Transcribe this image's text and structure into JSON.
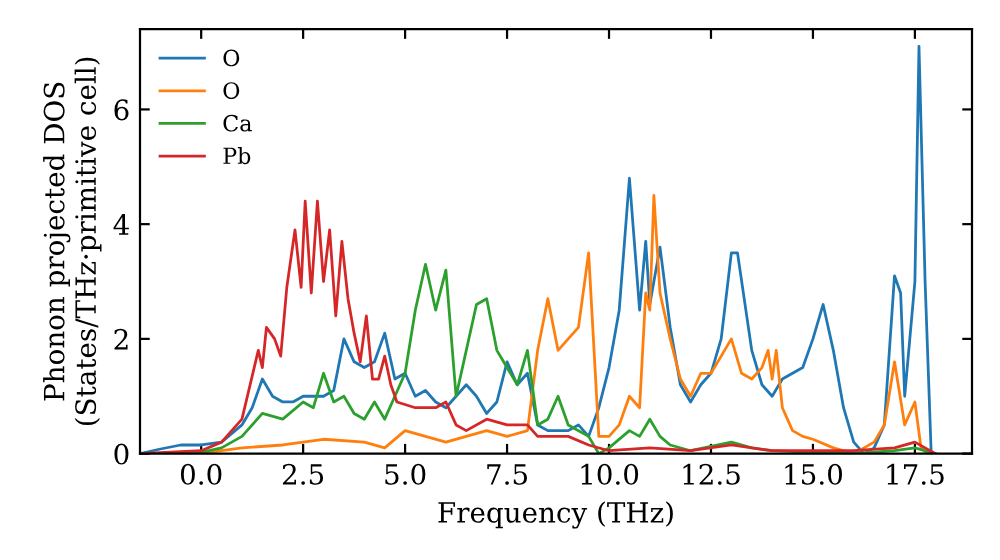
{
  "chart_data": {
    "type": "line",
    "xlabel": "Frequency (THz)",
    "ylabel": "Phonon projected DOS\n(States/THz·primitive cell)",
    "xlim": [
      -1.5,
      18.9
    ],
    "ylim": [
      0,
      7.4
    ],
    "xticks": [
      {
        "value": 0,
        "label": "0.0"
      },
      {
        "value": 2.5,
        "label": "2.5"
      },
      {
        "value": 5,
        "label": "5.0"
      },
      {
        "value": 7.5,
        "label": "7.5"
      },
      {
        "value": 10,
        "label": "10.0"
      },
      {
        "value": 12.5,
        "label": "12.5"
      },
      {
        "value": 15,
        "label": "15.0"
      },
      {
        "value": 17.5,
        "label": "17.5"
      }
    ],
    "yticks": [
      0,
      2,
      4,
      6
    ],
    "legend": "top left",
    "grid": false,
    "marker": "none",
    "line_style": "solid",
    "series": [
      {
        "name": "O",
        "color": "#1f77b4",
        "x": [
          -1.5,
          -1,
          -0.5,
          0,
          0.5,
          1,
          1.25,
          1.5,
          1.75,
          2,
          2.25,
          2.5,
          2.75,
          3,
          3.25,
          3.5,
          3.75,
          4,
          4.25,
          4.5,
          4.75,
          5,
          5.25,
          5.5,
          5.75,
          6,
          6.25,
          6.5,
          6.75,
          7,
          7.25,
          7.5,
          7.75,
          8,
          8.25,
          8.5,
          9,
          9.25,
          9.5,
          9.75,
          10,
          10.25,
          10.5,
          10.75,
          10.9,
          11,
          11.25,
          11.5,
          11.75,
          12,
          12.25,
          12.5,
          12.75,
          13,
          13.15,
          13.5,
          13.75,
          14,
          14.25,
          14.5,
          14.75,
          15,
          15.25,
          15.5,
          15.75,
          16,
          16.25,
          16.5,
          16.75,
          17,
          17.15,
          17.25,
          17.5,
          17.6,
          17.75,
          17.9
        ],
        "values": [
          0.0,
          0.08,
          0.15,
          0.15,
          0.2,
          0.5,
          0.8,
          1.3,
          1.0,
          0.9,
          0.9,
          1.0,
          1.0,
          1.0,
          1.1,
          2.0,
          1.6,
          1.5,
          1.6,
          2.1,
          1.3,
          1.4,
          1.0,
          1.1,
          0.9,
          0.8,
          1.0,
          1.2,
          1.0,
          0.7,
          0.9,
          1.6,
          1.2,
          1.4,
          0.5,
          0.4,
          0.4,
          0.5,
          0.3,
          0.8,
          1.5,
          2.5,
          4.8,
          2.5,
          3.7,
          2.6,
          3.6,
          2.2,
          1.2,
          0.9,
          1.2,
          1.4,
          2.0,
          3.5,
          3.5,
          1.8,
          1.2,
          1.0,
          1.3,
          1.4,
          1.5,
          2.0,
          2.6,
          1.8,
          0.8,
          0.2,
          0.0,
          0.1,
          0.5,
          3.1,
          2.8,
          1.0,
          3.0,
          7.1,
          3.0,
          0.0
        ]
      },
      {
        "name": "O",
        "color": "#ff7f0e",
        "x": [
          -1.5,
          0,
          0.5,
          1,
          2,
          2.5,
          3,
          4,
          4.5,
          5,
          5.5,
          6,
          6.5,
          7,
          7.5,
          8,
          8.25,
          8.5,
          8.75,
          9,
          9.25,
          9.5,
          9.75,
          10,
          10.25,
          10.5,
          10.75,
          10.9,
          11,
          11.1,
          11.25,
          11.5,
          11.75,
          12,
          12.25,
          12.5,
          12.75,
          13,
          13.25,
          13.5,
          13.75,
          13.9,
          14,
          14.1,
          14.25,
          14.5,
          14.75,
          15,
          15.5,
          16,
          16.5,
          16.75,
          17,
          17.25,
          17.5,
          17.65,
          17.8
        ],
        "values": [
          0.0,
          0.0,
          0.05,
          0.1,
          0.15,
          0.2,
          0.25,
          0.2,
          0.1,
          0.4,
          0.3,
          0.2,
          0.3,
          0.4,
          0.3,
          0.4,
          1.8,
          2.7,
          1.8,
          2.0,
          2.2,
          3.5,
          0.3,
          0.3,
          0.5,
          1.0,
          0.8,
          2.8,
          2.5,
          4.5,
          2.8,
          2.0,
          1.3,
          1.0,
          1.4,
          1.4,
          1.7,
          2.0,
          1.4,
          1.3,
          1.5,
          1.8,
          1.3,
          1.8,
          0.8,
          0.4,
          0.3,
          0.25,
          0.1,
          0.0,
          0.2,
          0.5,
          1.6,
          0.5,
          0.9,
          0.1,
          0.0
        ]
      },
      {
        "name": "Ca",
        "color": "#2ca02c",
        "x": [
          -1.5,
          0,
          0.5,
          1,
          1.5,
          2,
          2.5,
          2.75,
          3,
          3.25,
          3.5,
          3.75,
          4,
          4.25,
          4.5,
          5,
          5.25,
          5.5,
          5.75,
          6,
          6.25,
          6.5,
          6.75,
          7,
          7.25,
          7.5,
          7.75,
          8,
          8.25,
          8.5,
          8.75,
          9,
          9.5,
          9.75,
          10,
          10.5,
          10.75,
          11,
          11.25,
          11.5,
          12,
          13,
          13.5,
          14,
          15,
          16,
          17,
          17.5,
          18
        ],
        "values": [
          0.0,
          0.02,
          0.1,
          0.3,
          0.7,
          0.6,
          0.9,
          0.8,
          1.4,
          0.9,
          1.0,
          0.7,
          0.6,
          0.9,
          0.6,
          1.4,
          2.5,
          3.3,
          2.5,
          3.2,
          1.0,
          1.8,
          2.6,
          2.7,
          1.8,
          1.5,
          1.2,
          1.8,
          0.5,
          0.6,
          1.0,
          0.5,
          0.3,
          0.0,
          0.1,
          0.4,
          0.3,
          0.6,
          0.3,
          0.15,
          0.05,
          0.2,
          0.1,
          0.05,
          0.02,
          0.0,
          0.05,
          0.1,
          0.0
        ]
      },
      {
        "name": "Pb",
        "color": "#d62728",
        "x": [
          -1.5,
          0,
          0.5,
          1,
          1.4,
          1.5,
          1.6,
          1.8,
          1.95,
          2.1,
          2.3,
          2.45,
          2.55,
          2.7,
          2.85,
          3.0,
          3.15,
          3.3,
          3.45,
          3.6,
          3.75,
          3.9,
          4.05,
          4.2,
          4.35,
          4.5,
          4.65,
          4.8,
          5.25,
          5.5,
          5.75,
          6,
          6.25,
          6.5,
          7,
          7.5,
          8,
          8.25,
          9,
          9.5,
          10,
          11,
          12,
          13,
          14,
          15,
          16,
          17,
          17.5,
          17.75,
          18
        ],
        "values": [
          0.0,
          0.05,
          0.2,
          0.6,
          1.8,
          1.5,
          2.2,
          2.0,
          1.7,
          2.9,
          3.9,
          2.9,
          4.4,
          2.8,
          4.4,
          3.0,
          3.9,
          2.4,
          3.7,
          2.7,
          2.1,
          1.6,
          2.4,
          1.3,
          1.3,
          1.7,
          1.2,
          0.9,
          0.8,
          0.8,
          0.8,
          0.9,
          0.5,
          0.4,
          0.6,
          0.5,
          0.5,
          0.3,
          0.3,
          0.15,
          0.05,
          0.1,
          0.05,
          0.15,
          0.05,
          0.05,
          0.05,
          0.1,
          0.2,
          0.1,
          0.0
        ]
      }
    ]
  }
}
